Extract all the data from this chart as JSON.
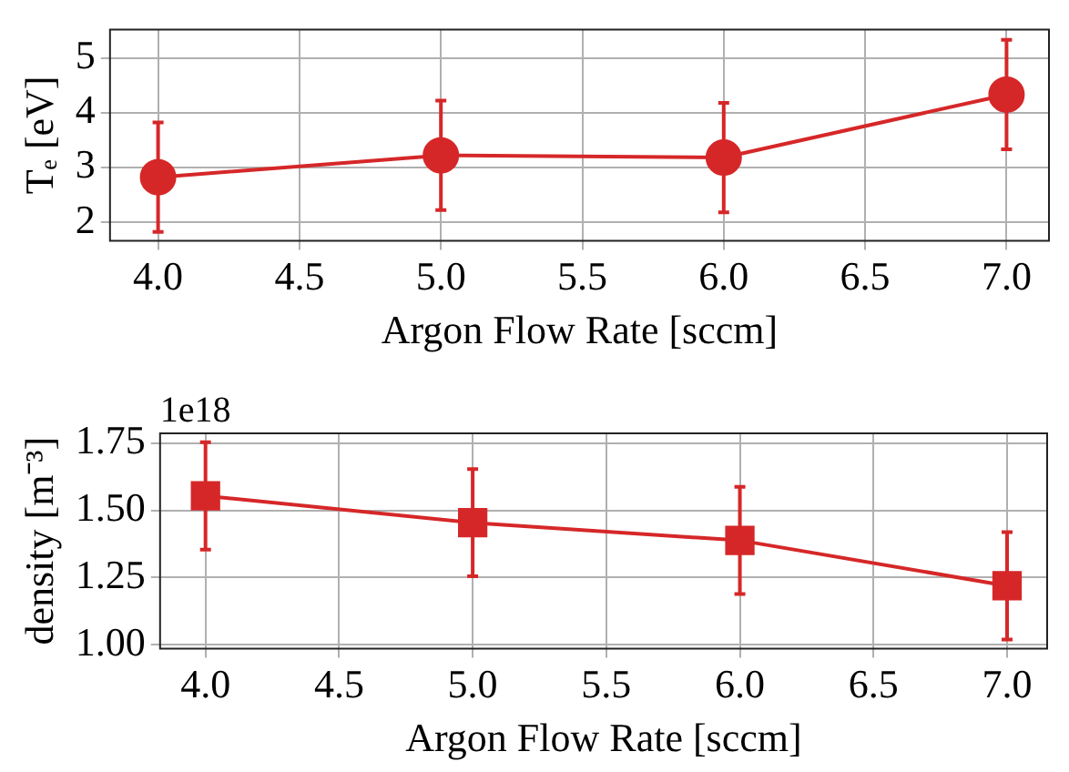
{
  "chart_data": [
    {
      "type": "line",
      "x": [
        4.0,
        5.0,
        6.0,
        7.0
      ],
      "values": [
        2.82,
        3.22,
        3.18,
        4.33
      ],
      "errors": [
        1,
        1,
        1,
        1
      ],
      "color": "#d62728",
      "marker": "circle",
      "xlabel": "Argon Flow Rate [sccm]",
      "ylabel": "Tₑ [eV]",
      "xlim": [
        3.83,
        7.15
      ],
      "xticks": [
        {
          "value": 4,
          "label": "4.0"
        },
        {
          "value": 4.5,
          "label": "4.5"
        },
        {
          "value": 5,
          "label": "5.0"
        },
        {
          "value": 5.5,
          "label": "5.5"
        },
        {
          "value": 6,
          "label": "6.0"
        },
        {
          "value": 6.5,
          "label": "6.5"
        },
        {
          "value": 7,
          "label": "7.0"
        }
      ],
      "ylim": [
        1.66,
        5.52
      ],
      "yticks": [
        2,
        3,
        4,
        5
      ],
      "grid": true
    },
    {
      "type": "line",
      "x": [
        4.0,
        5.0,
        6.0,
        7.0
      ],
      "values": [
        1.554,
        1.454,
        1.388,
        1.219
      ],
      "errors": [
        0.2,
        0.2,
        0.2,
        0.2
      ],
      "color": "#d62728",
      "marker": "square",
      "xlabel": "Argon Flow Rate [sccm]",
      "ylabel": "density [m⁻³]",
      "annotations": [
        "1e18"
      ],
      "xlim": [
        3.83,
        7.15
      ],
      "xticks": [
        {
          "value": 4,
          "label": "4.0"
        },
        {
          "value": 4.5,
          "label": "4.5"
        },
        {
          "value": 5,
          "label": "5.0"
        },
        {
          "value": 5.5,
          "label": "5.5"
        },
        {
          "value": 6,
          "label": "6.0"
        },
        {
          "value": 6.5,
          "label": "6.5"
        },
        {
          "value": 7,
          "label": "7.0"
        }
      ],
      "ylim": [
        0.985,
        1.787
      ],
      "yticks": [
        {
          "value": 1,
          "label": "1.00"
        },
        {
          "value": 1.25,
          "label": "1.25"
        },
        {
          "value": 1.5,
          "label": "1.50"
        },
        {
          "value": 1.75,
          "label": "1.75"
        }
      ],
      "grid": true
    }
  ]
}
